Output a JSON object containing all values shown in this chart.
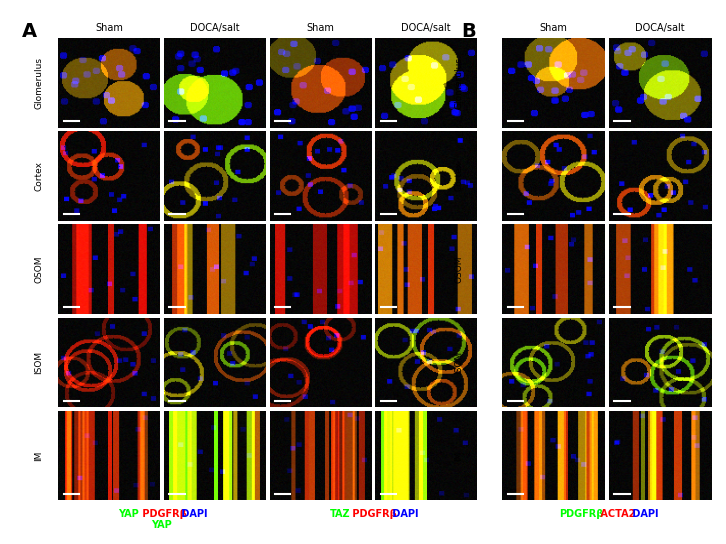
{
  "background_color": "#000000",
  "fig_background": "#ffffff",
  "panel_A_label": "A",
  "panel_B_label": "B",
  "row_labels": [
    "Glomerulus",
    "Cortex",
    "OSOM",
    "ISOM",
    "IM"
  ],
  "col_labels_left": [
    "Sham",
    "DOCA/salt"
  ],
  "col_labels_right_AB": [
    "Sham",
    "DOCA/salt"
  ],
  "section1_cols": [
    "Sham",
    "DOCA/salt"
  ],
  "section2_cols": [
    "Sham",
    "DOCA/salt"
  ],
  "legend_A1": [
    {
      "text": "YAP",
      "color": "#00ff00"
    },
    {
      "text": " PDGFRβ",
      "color": "#ff0000"
    },
    {
      "text": " DAPI",
      "color": "#0000ff"
    }
  ],
  "legend_A2": [
    {
      "text": "TAZ",
      "color": "#00ff00"
    },
    {
      "text": " PDGFRβ",
      "color": "#ff0000"
    },
    {
      "text": " DAPI",
      "color": "#0000ff"
    }
  ],
  "legend_B": [
    {
      "text": "PDGFRβ",
      "color": "#00ff00"
    },
    {
      "text": " ACTA2",
      "color": "#ff0000"
    },
    {
      "text": " DAPI",
      "color": "#0000ff"
    }
  ],
  "n_rows": 5,
  "n_cols_section1": 2,
  "n_cols_section2": 2,
  "n_cols_section3": 2,
  "seed": 42
}
